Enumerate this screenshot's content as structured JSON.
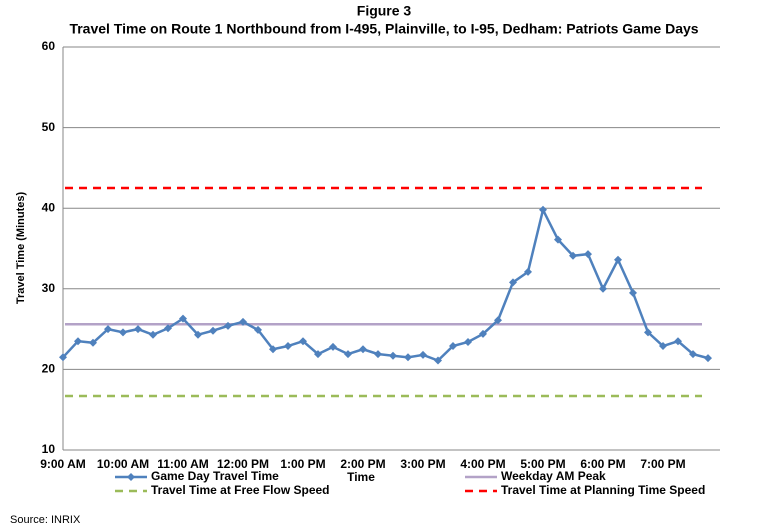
{
  "chart_data": {
    "type": "line",
    "title": "Figure 3",
    "subtitle": "Travel Time on Route 1 Northbound from I-495, Plainville, to I-95, Dedham: Patriots Game Days",
    "x_label": "Time",
    "y_label": "Travel Time (Minutes)",
    "source": "Source: INRIX",
    "categories": [
      "9:00 AM",
      null,
      null,
      null,
      "10:00 AM",
      null,
      null,
      null,
      "11:00 AM",
      null,
      null,
      null,
      "12:00 PM",
      null,
      null,
      null,
      "1:00 PM",
      null,
      null,
      null,
      "2:00 PM",
      null,
      null,
      null,
      "3:00 PM",
      null,
      null,
      null,
      "4:00 PM",
      null,
      null,
      null,
      "5:00 PM",
      null,
      null,
      null,
      "6:00 PM",
      null,
      null,
      null,
      "7:00 PM",
      null,
      null,
      null
    ],
    "series": [
      {
        "name": "Game Day Travel Time",
        "color": "#4f81bd",
        "values": [
          21.5,
          23.5,
          23.3,
          25.0,
          24.6,
          25.0,
          24.3,
          25.1,
          26.3,
          24.3,
          24.8,
          25.4,
          25.9,
          24.9,
          22.5,
          22.9,
          23.5,
          21.9,
          22.8,
          21.9,
          22.5,
          21.9,
          21.7,
          21.5,
          21.8,
          21.1,
          22.9,
          23.4,
          24.4,
          26.1,
          30.8,
          32.1,
          39.8,
          36.1,
          34.1,
          34.3,
          30.0,
          33.6,
          29.5,
          24.6,
          22.9,
          23.5,
          21.9,
          21.4
        ]
      }
    ],
    "reference_lines": [
      {
        "name": "Weekday AM Peak",
        "color": "#b3a2c7",
        "value": 25.6,
        "dashed": false
      },
      {
        "name": "Travel Time at Free Flow Speed",
        "color": "#9bbb59",
        "value": 16.7,
        "dashed": true
      },
      {
        "name": "Travel Time at Planning Time Speed",
        "color": "#ff0000",
        "value": 42.5,
        "dashed": true
      }
    ],
    "ylim": [
      10,
      60
    ],
    "yticks": [
      10,
      20,
      30,
      40,
      50,
      60
    ],
    "grid": true
  }
}
